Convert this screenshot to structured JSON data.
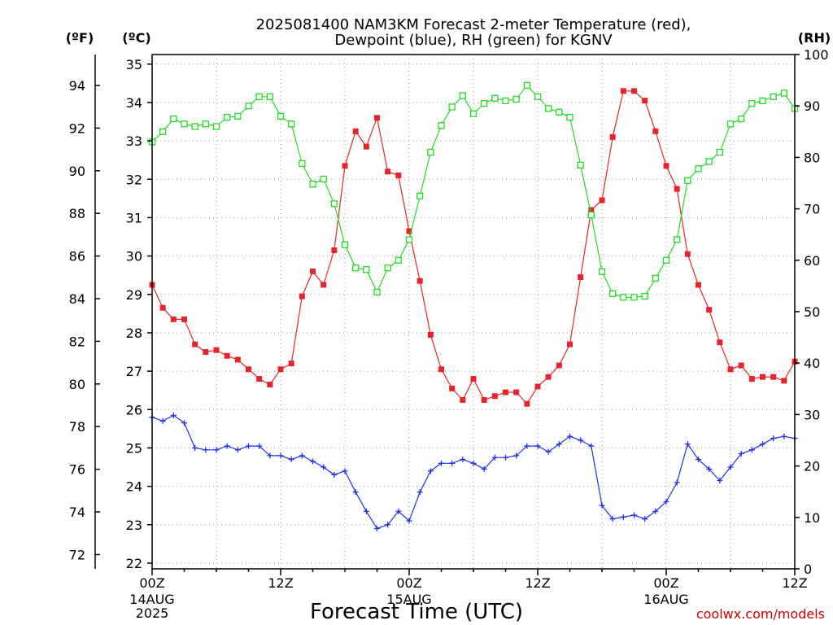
{
  "chart_data": {
    "type": "line",
    "title_lines": [
      "2025081400 NAM3KM Forecast 2-meter Temperature (red),",
      "Dewpoint (blue), RH (green) for KGNV"
    ],
    "units": {
      "left_outer": "(ºF)",
      "left_inner": "(ºC)",
      "right": "(RH)"
    },
    "xlabel": "Forecast Time (UTC)",
    "x_ticks": [
      {
        "hour": 0,
        "label": "00Z",
        "sub": [
          "14AUG",
          "2025"
        ]
      },
      {
        "hour": 12,
        "label": "12Z",
        "sub": []
      },
      {
        "hour": 24,
        "label": "00Z",
        "sub": [
          "15AUG"
        ]
      },
      {
        "hour": 36,
        "label": "12Z",
        "sub": []
      },
      {
        "hour": 48,
        "label": "00Z",
        "sub": [
          "16AUG"
        ]
      },
      {
        "hour": 60,
        "label": "12Z",
        "sub": []
      }
    ],
    "xlim": [
      0,
      60
    ],
    "ylim_c": [
      21.85,
      35.25
    ],
    "ylim_rh": [
      0,
      100
    ],
    "celsius_ticks": [
      "22",
      "23",
      "24",
      "25",
      "26",
      "27",
      "28",
      "29",
      "30",
      "31",
      "32",
      "33",
      "34",
      "35"
    ],
    "fahrenheit_ticks": [
      "72",
      "74",
      "76",
      "78",
      "80",
      "82",
      "84",
      "86",
      "88",
      "90",
      "92",
      "94"
    ],
    "rh_ticks": [
      "0",
      "10",
      "20",
      "30",
      "40",
      "50",
      "60",
      "70",
      "80",
      "90",
      "100"
    ],
    "grid": true,
    "credit": "coolwx.com/models",
    "series": [
      {
        "name": "Temperature",
        "color": "#e8242b",
        "marker": "filled-square",
        "axis": "C",
        "x": [
          0,
          1,
          2,
          3,
          4,
          5,
          6,
          7,
          8,
          9,
          10,
          11,
          12,
          13,
          14,
          15,
          16,
          17,
          18,
          19,
          20,
          21,
          22,
          23,
          24,
          25,
          26,
          27,
          28,
          29,
          30,
          31,
          32,
          33,
          34,
          35,
          36,
          37,
          38,
          39,
          40,
          41,
          42,
          43,
          44,
          45,
          46,
          47,
          48,
          49,
          50,
          51,
          52,
          53,
          54,
          55,
          56,
          57,
          58,
          59,
          60
        ],
        "values": [
          29.25,
          28.65,
          28.35,
          28.35,
          27.7,
          27.5,
          27.55,
          27.4,
          27.3,
          27.05,
          26.8,
          26.65,
          27.05,
          27.2,
          28.95,
          29.6,
          29.25,
          30.15,
          32.35,
          33.25,
          32.85,
          33.6,
          32.2,
          32.1,
          30.65,
          29.35,
          27.95,
          27.05,
          26.55,
          26.25,
          26.8,
          26.25,
          26.35,
          26.45,
          26.45,
          26.15,
          26.6,
          26.85,
          27.15,
          27.7,
          29.45,
          31.2,
          31.45,
          33.1,
          34.3,
          34.3,
          34.05,
          33.25,
          32.35,
          31.75,
          30.05,
          29.25,
          28.6,
          27.75,
          27.05,
          27.15,
          26.8,
          26.85,
          26.85,
          26.75,
          27.25
        ]
      },
      {
        "name": "Dewpoint",
        "color": "#2030e8",
        "marker": "plus",
        "axis": "C",
        "x": [
          0,
          1,
          2,
          3,
          4,
          5,
          6,
          7,
          8,
          9,
          10,
          11,
          12,
          13,
          14,
          15,
          16,
          17,
          18,
          19,
          20,
          21,
          22,
          23,
          24,
          25,
          26,
          27,
          28,
          29,
          30,
          31,
          32,
          33,
          34,
          35,
          36,
          37,
          38,
          39,
          40,
          41,
          42,
          43,
          44,
          45,
          46,
          47,
          48,
          49,
          50,
          51,
          52,
          53,
          54,
          55,
          56,
          57,
          58,
          59,
          60
        ],
        "values": [
          25.8,
          25.7,
          25.85,
          25.65,
          25.0,
          24.95,
          24.95,
          25.05,
          24.95,
          25.05,
          25.05,
          24.8,
          24.8,
          24.7,
          24.8,
          24.65,
          24.5,
          24.3,
          24.4,
          23.85,
          23.35,
          22.9,
          23.0,
          23.35,
          23.1,
          23.85,
          24.4,
          24.6,
          24.6,
          24.7,
          24.6,
          24.45,
          24.75,
          24.75,
          24.8,
          25.05,
          25.05,
          24.9,
          25.1,
          25.3,
          25.2,
          25.05,
          23.5,
          23.15,
          23.2,
          23.25,
          23.15,
          23.35,
          23.6,
          24.1,
          25.1,
          24.7,
          24.45,
          24.15,
          24.5,
          24.85,
          24.95,
          25.1,
          25.25,
          25.3,
          25.25
        ]
      },
      {
        "name": "RH",
        "color": "#22dd22",
        "marker": "open-square",
        "axis": "RH",
        "x": [
          0,
          1,
          2,
          3,
          4,
          5,
          6,
          7,
          8,
          9,
          10,
          11,
          12,
          13,
          14,
          15,
          16,
          17,
          18,
          19,
          20,
          21,
          22,
          23,
          24,
          25,
          26,
          27,
          28,
          29,
          30,
          31,
          32,
          33,
          34,
          35,
          36,
          37,
          38,
          39,
          40,
          41,
          42,
          43,
          44,
          45,
          46,
          47,
          48,
          49,
          50,
          51,
          52,
          53,
          54,
          55,
          56,
          57,
          58,
          59,
          60
        ],
        "values": [
          83,
          85,
          87.5,
          86.5,
          86,
          86.5,
          86,
          87.8,
          88,
          90,
          91.8,
          91.8,
          88,
          86.5,
          78.8,
          74.8,
          75.8,
          71,
          63,
          58.5,
          58.2,
          53.8,
          58.5,
          60,
          64,
          72.5,
          81,
          86.2,
          89.8,
          92,
          88.5,
          90.5,
          91.5,
          91,
          91.3,
          94,
          91.8,
          89.5,
          88.8,
          87.8,
          78.5,
          68.8,
          57.8,
          53.5,
          52.8,
          52.8,
          53,
          56.5,
          60,
          64,
          75.5,
          77.8,
          79.2,
          81,
          86.5,
          87.5,
          90.5,
          91,
          91.8,
          92.5,
          89.5
        ]
      }
    ]
  }
}
